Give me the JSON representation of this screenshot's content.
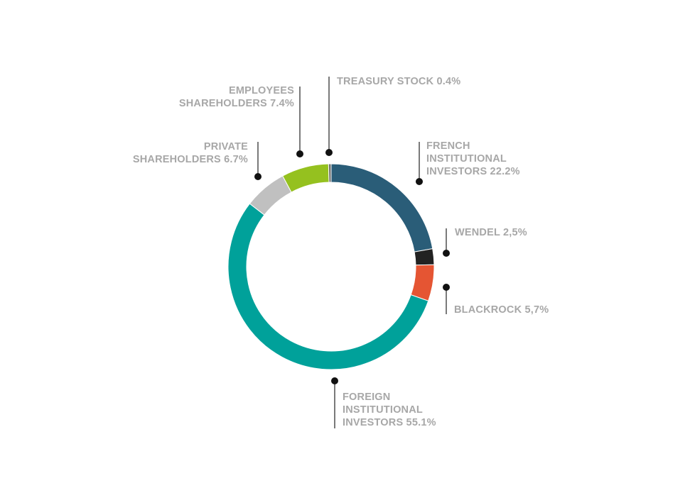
{
  "chart_data": {
    "type": "pie",
    "subtype": "donut",
    "slices": [
      {
        "name": "FRENCH INSTITUTIONAL INVESTORS",
        "value": 22.2,
        "color": "#2a5d78",
        "label_lines": [
          "FRENCH",
          "INSTITUTIONAL",
          "INVESTORS 22.2%"
        ]
      },
      {
        "name": "WENDEL",
        "value": 2.5,
        "color": "#222222",
        "label_lines": [
          "WENDEL 2,5%"
        ]
      },
      {
        "name": "BLACKROCK",
        "value": 5.7,
        "color": "#e55533",
        "label_lines": [
          "BLACKROCK 5,7%"
        ]
      },
      {
        "name": "FOREIGN INSTITUTIONAL INVESTORS",
        "value": 55.1,
        "color": "#00a19a",
        "label_lines": [
          "FOREIGN",
          "INSTITUTIONAL",
          "INVESTORS 55.1%"
        ]
      },
      {
        "name": "PRIVATE SHAREHOLDERS",
        "value": 6.7,
        "color": "#c0c0c0",
        "label_lines": [
          "PRIVATE",
          "SHAREHOLDERS 6.7%"
        ]
      },
      {
        "name": "EMPLOYEES SHAREHOLDERS",
        "value": 7.4,
        "color": "#95c11f",
        "label_lines": [
          "EMPLOYEES",
          "SHAREHOLDERS 7.4%"
        ]
      },
      {
        "name": "TREASURY STOCK",
        "value": 0.4,
        "color": "#6f6f6f",
        "label_lines": [
          "TREASURY STOCK 0.4%"
        ]
      }
    ],
    "start_angle": "12 o'clock",
    "direction": "clockwise",
    "label_color": "#a7a7a7",
    "leader_color": "#222222"
  }
}
